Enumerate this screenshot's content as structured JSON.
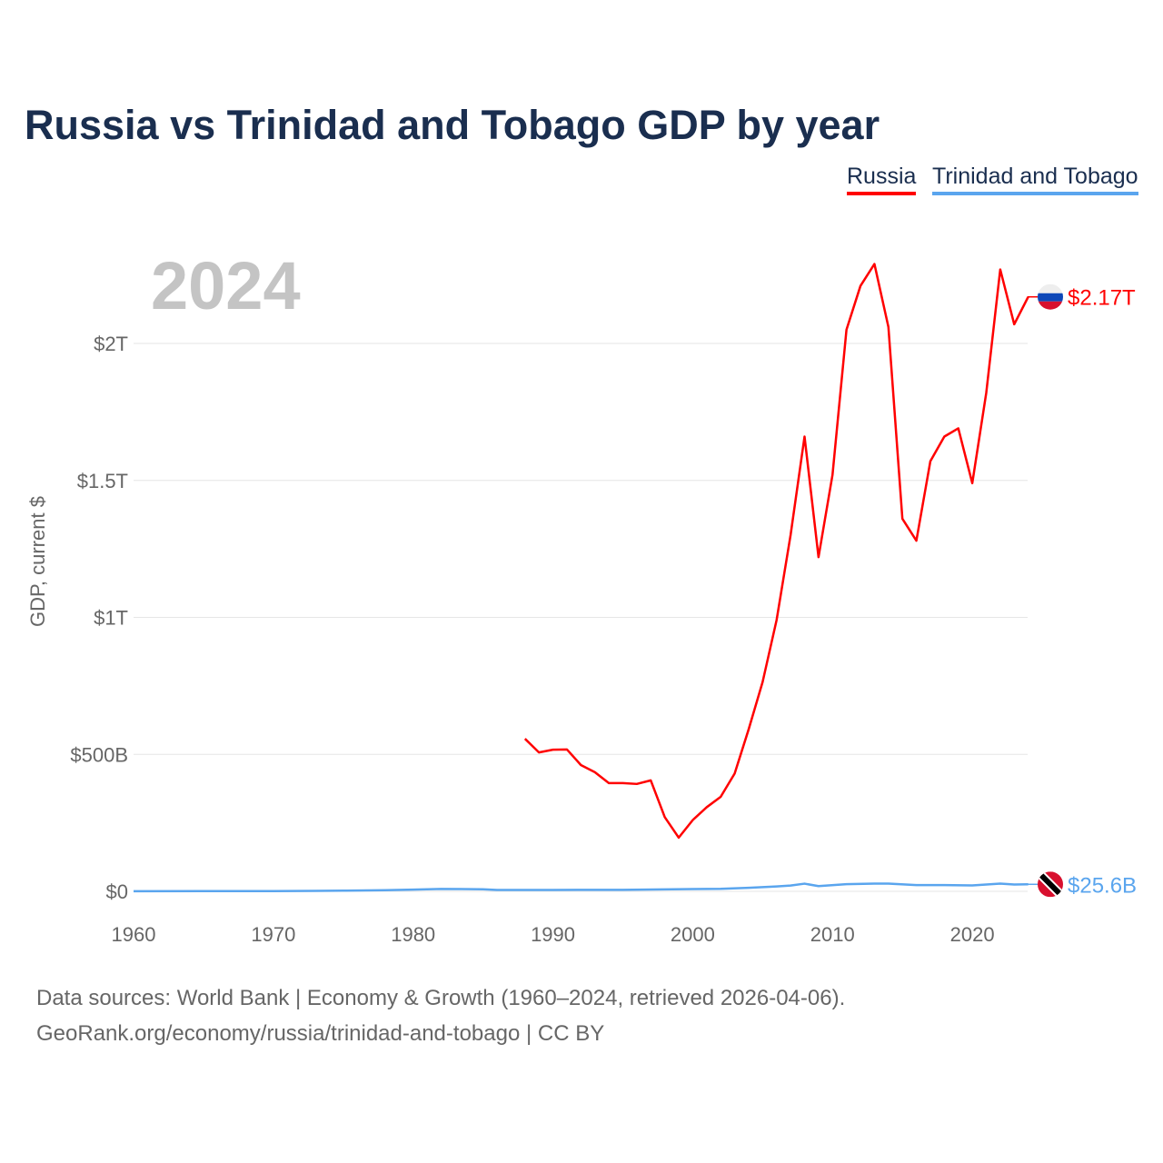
{
  "chart_data": {
    "type": "line",
    "title": "Russia vs Trinidad and Tobago GDP by year",
    "ylabel": "GDP, current $",
    "xlabel": "",
    "current_year": "2024",
    "xlim": [
      1960,
      2024
    ],
    "ylim": [
      0,
      2.3
    ],
    "y_unit": "trillion USD",
    "xticks": [
      1960,
      1970,
      1980,
      1990,
      2000,
      2010,
      2020
    ],
    "xtick_labels": [
      "1960",
      "1970",
      "1980",
      "1990",
      "2000",
      "2010",
      "2020"
    ],
    "yticks": [
      0,
      0.5,
      1,
      1.5,
      2
    ],
    "ytick_labels": [
      "$0",
      "$500B",
      "$1T",
      "$1.5T",
      "$2T"
    ],
    "grid": true,
    "legend_position": "top-right",
    "series": [
      {
        "name": "Russia",
        "color": "#ff0000",
        "end_label": "$2.17T",
        "flag": "russia-flag",
        "x": [
          1988,
          1989,
          1990,
          1991,
          1992,
          1993,
          1994,
          1995,
          1996,
          1997,
          1998,
          1999,
          2000,
          2001,
          2002,
          2003,
          2004,
          2005,
          2006,
          2007,
          2008,
          2009,
          2010,
          2011,
          2012,
          2013,
          2014,
          2015,
          2016,
          2017,
          2018,
          2019,
          2020,
          2021,
          2022,
          2023,
          2024
        ],
        "values": [
          0.557,
          0.507,
          0.517,
          0.518,
          0.461,
          0.435,
          0.395,
          0.395,
          0.392,
          0.405,
          0.271,
          0.196,
          0.26,
          0.307,
          0.345,
          0.43,
          0.591,
          0.764,
          0.99,
          1.3,
          1.66,
          1.22,
          1.52,
          2.05,
          2.21,
          2.29,
          2.06,
          1.36,
          1.28,
          1.57,
          1.66,
          1.69,
          1.49,
          1.82,
          2.27,
          2.07,
          2.17
        ]
      },
      {
        "name": "Trinidad and Tobago",
        "color": "#5aa5ee",
        "end_label": "$25.6B",
        "flag": "trinidad-flag",
        "x": [
          1960,
          1965,
          1970,
          1973,
          1975,
          1978,
          1980,
          1982,
          1985,
          1986,
          1990,
          1995,
          2000,
          2002,
          2004,
          2006,
          2007,
          2008,
          2009,
          2011,
          2013,
          2014,
          2016,
          2018,
          2020,
          2022,
          2023,
          2024
        ],
        "values": [
          0.0005,
          0.0007,
          0.0008,
          0.0015,
          0.0025,
          0.004,
          0.0063,
          0.0088,
          0.0074,
          0.0048,
          0.0051,
          0.0054,
          0.0082,
          0.0091,
          0.013,
          0.018,
          0.021,
          0.028,
          0.019,
          0.026,
          0.028,
          0.028,
          0.023,
          0.023,
          0.0215,
          0.028,
          0.025,
          0.0256
        ]
      }
    ]
  },
  "footer": {
    "line1": "Data sources: World Bank | Economy & Growth (1960–2024, retrieved 2026-04-06).",
    "line2": "GeoRank.org/economy/russia/trinidad-and-tobago | CC BY"
  }
}
